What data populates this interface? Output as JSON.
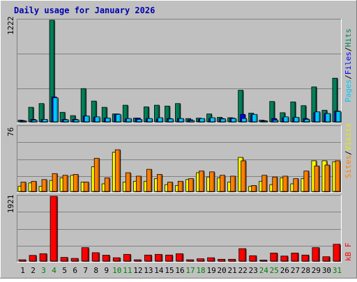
{
  "title": "Daily usage for January 2026",
  "colors": {
    "background": "#c0c0c0",
    "title": "#0000b0",
    "pages_face": "#00c8f8",
    "pages_side": "#0090b8",
    "files_face": "#0000ff",
    "hits_face": "#00805a",
    "hits_side": "#005a40",
    "visits_face": "#ffff00",
    "visits_side": "#b8b800",
    "sites_face": "#ff8000",
    "sites_side": "#b85800",
    "kbf_face": "#ff0000",
    "kbf_side": "#b00000",
    "weekend_label": "#008000",
    "weekday_label": "#000000"
  },
  "legend": {
    "top": {
      "pages": "Pages",
      "sep1": "/",
      "files": "Files",
      "sep2": "/",
      "hits": "Hits"
    },
    "middle": {
      "sites": "Sites",
      "sep": "/",
      "visits": "Visits"
    },
    "bottom": {
      "kbf": "kB F"
    }
  },
  "chart_data": [
    {
      "type": "bar",
      "panel": "hits",
      "ylabel_max": "1222",
      "ylim": [
        0,
        1222
      ],
      "grid": true,
      "x": [
        "1",
        "2",
        "3",
        "4",
        "5",
        "6",
        "7",
        "8",
        "9",
        "10",
        "11",
        "12",
        "13",
        "14",
        "15",
        "16",
        "17",
        "18",
        "19",
        "20",
        "21",
        "22",
        "23",
        "24",
        "25",
        "26",
        "27",
        "28",
        "29",
        "30",
        "31"
      ],
      "weekend_days": [
        "3",
        "4",
        "10",
        "11",
        "17",
        "18",
        "24",
        "25",
        "31"
      ],
      "series": [
        {
          "name": "Hits",
          "values": [
            20,
            175,
            220,
            1222,
            115,
            75,
            400,
            250,
            175,
            95,
            200,
            45,
            180,
            200,
            190,
            220,
            40,
            45,
            95,
            55,
            50,
            380,
            105,
            20,
            245,
            110,
            240,
            195,
            420,
            140,
            525
          ]
        },
        {
          "name": "Files",
          "values": [
            15,
            30,
            30,
            300,
            30,
            30,
            70,
            55,
            45,
            95,
            35,
            45,
            40,
            35,
            40,
            40,
            25,
            30,
            40,
            40,
            45,
            90,
            85,
            15,
            40,
            50,
            50,
            40,
            110,
            100,
            130
          ]
        },
        {
          "name": "Pages",
          "values": [
            10,
            20,
            30,
            290,
            25,
            25,
            70,
            60,
            45,
            90,
            40,
            30,
            40,
            50,
            35,
            40,
            15,
            40,
            50,
            35,
            40,
            40,
            90,
            10,
            20,
            60,
            55,
            30,
            120,
            100,
            125
          ]
        }
      ]
    },
    {
      "type": "bar",
      "panel": "visits",
      "ylabel_max": "76",
      "ylim": [
        0,
        76
      ],
      "grid": true,
      "x": [
        "1",
        "2",
        "3",
        "4",
        "5",
        "6",
        "7",
        "8",
        "9",
        "10",
        "11",
        "12",
        "13",
        "14",
        "15",
        "16",
        "17",
        "18",
        "19",
        "20",
        "21",
        "22",
        "23",
        "24",
        "25",
        "26",
        "27",
        "28",
        "29",
        "30",
        "31"
      ],
      "weekend_days": [
        "3",
        "4",
        "10",
        "11",
        "17",
        "18",
        "24",
        "25",
        "31"
      ],
      "series": [
        {
          "name": "Visits",
          "values": [
            6,
            10,
            6,
            13,
            16,
            19,
            11,
            29,
            9,
            46,
            11,
            12,
            12,
            15,
            8,
            7,
            14,
            22,
            17,
            16,
            11,
            40,
            6,
            12,
            8,
            16,
            9,
            15,
            36,
            36,
            35
          ]
        },
        {
          "name": "Sites",
          "values": [
            11,
            12,
            14,
            21,
            19,
            20,
            11,
            39,
            16,
            49,
            22,
            18,
            26,
            20,
            11,
            12,
            15,
            24,
            23,
            19,
            18,
            36,
            7,
            19,
            17,
            18,
            15,
            24,
            30,
            31,
            36
          ]
        }
      ]
    },
    {
      "type": "bar",
      "panel": "kbf",
      "ylabel_max": "1921",
      "ylim": [
        0,
        1921
      ],
      "grid": true,
      "x": [
        "1",
        "2",
        "3",
        "4",
        "5",
        "6",
        "7",
        "8",
        "9",
        "10",
        "11",
        "12",
        "13",
        "14",
        "15",
        "16",
        "17",
        "18",
        "19",
        "20",
        "21",
        "22",
        "23",
        "24",
        "25",
        "26",
        "27",
        "28",
        "29",
        "30",
        "31"
      ],
      "weekend_days": [
        "3",
        "4",
        "10",
        "11",
        "17",
        "18",
        "24",
        "25",
        "31"
      ],
      "series": [
        {
          "name": "kB F",
          "values": [
            40,
            170,
            220,
            1921,
            110,
            80,
            400,
            250,
            175,
            100,
            200,
            40,
            180,
            200,
            180,
            220,
            40,
            70,
            100,
            55,
            55,
            370,
            160,
            30,
            240,
            150,
            240,
            180,
            400,
            130,
            500
          ]
        }
      ]
    }
  ]
}
